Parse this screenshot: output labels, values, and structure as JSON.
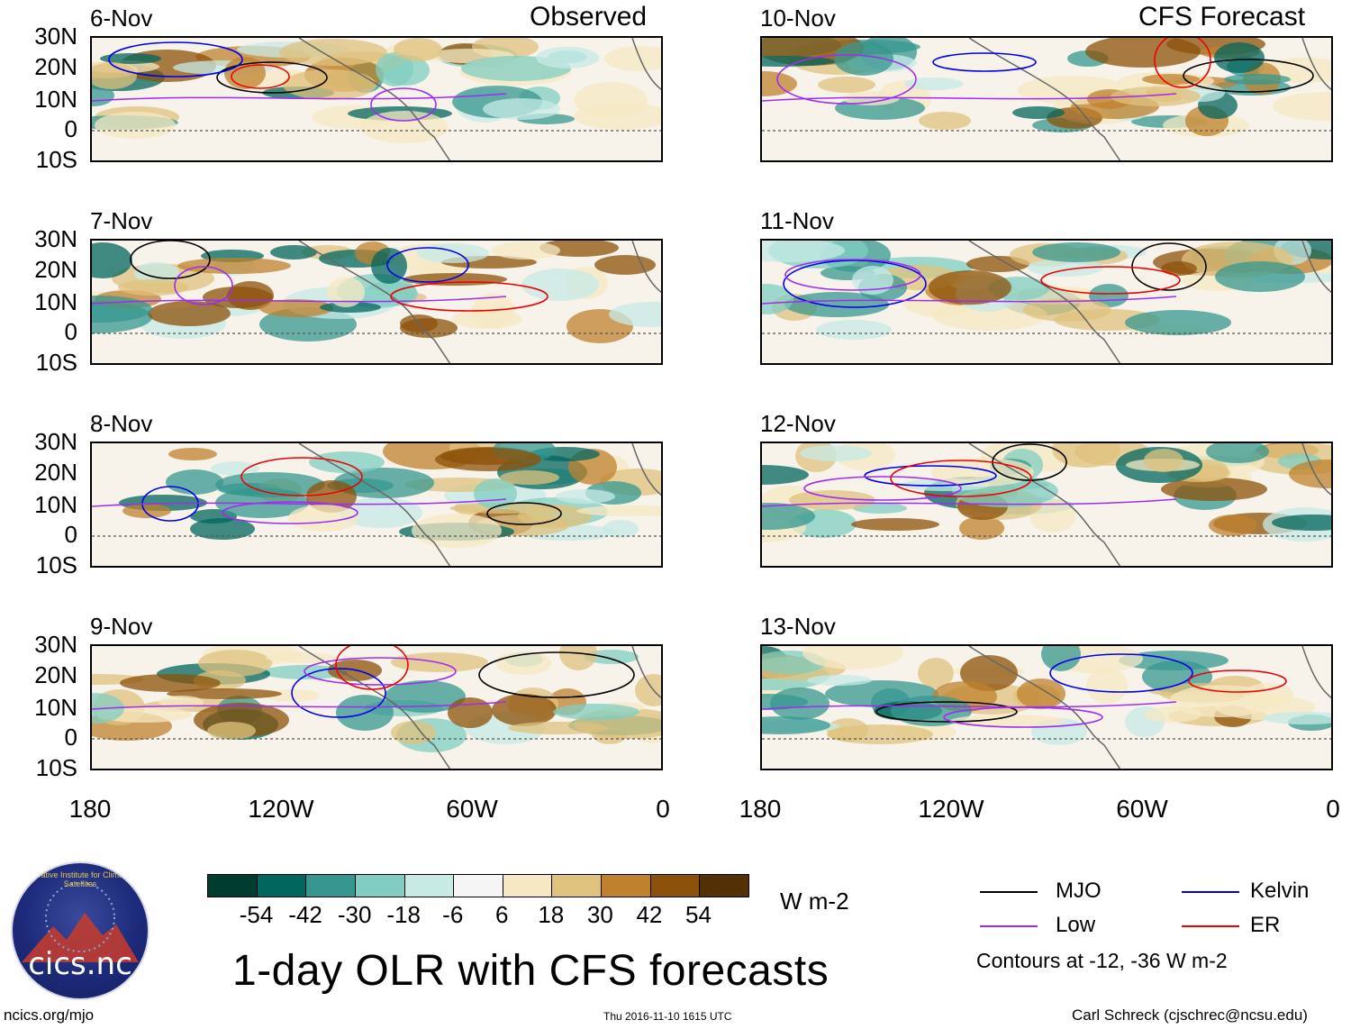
{
  "headers": {
    "observed": "Observed",
    "forecast": "CFS Forecast"
  },
  "panels": [
    {
      "date": "6-Nov",
      "column": "observed"
    },
    {
      "date": "7-Nov",
      "column": "observed"
    },
    {
      "date": "8-Nov",
      "column": "observed"
    },
    {
      "date": "9-Nov",
      "column": "observed"
    },
    {
      "date": "10-Nov",
      "column": "forecast"
    },
    {
      "date": "11-Nov",
      "column": "forecast"
    },
    {
      "date": "12-Nov",
      "column": "forecast"
    },
    {
      "date": "13-Nov",
      "column": "forecast"
    }
  ],
  "lat_labels": [
    "30N",
    "20N",
    "10N",
    "0",
    "10S"
  ],
  "lon_labels": [
    "180",
    "120W",
    "60W",
    "0"
  ],
  "colorbar": {
    "colors": [
      "#013c31",
      "#01665e",
      "#35978f",
      "#80cdc1",
      "#c7eae5",
      "#f5f5f5",
      "#f6e8c3",
      "#dfc27d",
      "#bf812d",
      "#8c510a",
      "#543005"
    ],
    "labels": [
      "-54",
      "-42",
      "-30",
      "-18",
      "-6",
      "6",
      "18",
      "30",
      "42",
      "54"
    ],
    "units": "W m-2"
  },
  "title": "1-day OLR with CFS forecasts",
  "legend": {
    "items": [
      {
        "label": "MJO",
        "color": "#000000"
      },
      {
        "label": "Kelvin",
        "color": "#0000ee"
      },
      {
        "label": "Low",
        "color": "#a02cf0"
      },
      {
        "label": "ER",
        "color": "#ee0000"
      }
    ],
    "note": "Contours at -12, -36 W m-2"
  },
  "footer": {
    "left": "ncics.org/mjo",
    "center": "Thu 2016-11-10 1615 UTC",
    "right": "Carl Schreck (cjschrec@ncsu.edu)"
  },
  "logo": {
    "text": "cics.nc",
    "ring": "Cooperative Institute for Climate and Satellites"
  }
}
